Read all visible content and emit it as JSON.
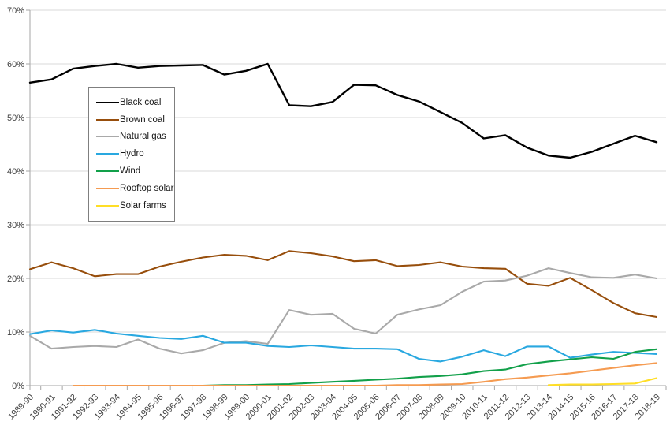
{
  "chart_data": {
    "type": "line",
    "title": "",
    "xlabel": "",
    "ylabel": "",
    "grid": true,
    "legend_position": "upper-left-inside",
    "background_color": "#ffffff",
    "gridline_color": "#d9d9d9",
    "axis_color": "#a6a6a6",
    "x_categories": [
      "1989-90",
      "1990-91",
      "1991-92",
      "1992-93",
      "1993-94",
      "1994-95",
      "1995-96",
      "1996-97",
      "1997-98",
      "1998-99",
      "1999-00",
      "2000-01",
      "2001-02",
      "2002-03",
      "2003-04",
      "2004-05",
      "2005-06",
      "2006-07",
      "2007-08",
      "2008-09",
      "2009-10",
      "2010-11",
      "2011-12",
      "2012-13",
      "2013-14",
      "2014-15",
      "2015-16",
      "2016-17",
      "2017-18",
      "2018-19"
    ],
    "y_axis": {
      "min": 0,
      "max": 70,
      "step": 10,
      "unit": "%",
      "tick_labels": [
        "0%",
        "10%",
        "20%",
        "30%",
        "40%",
        "50%",
        "60%",
        "70%"
      ]
    },
    "series": [
      {
        "name": "Black coal",
        "color": "#000000",
        "values": [
          56.5,
          57.1,
          59.1,
          59.6,
          60.0,
          59.3,
          59.6,
          59.7,
          59.8,
          58.0,
          58.7,
          60.0,
          52.3,
          52.1,
          52.9,
          56.1,
          56.0,
          54.2,
          53.0,
          51.0,
          49.0,
          46.1,
          46.7,
          44.4,
          42.9,
          42.5,
          43.6,
          45.1,
          46.6,
          45.4
        ]
      },
      {
        "name": "Brown coal",
        "color": "#974e0c",
        "values": [
          21.7,
          23.0,
          21.9,
          20.4,
          20.8,
          20.8,
          22.2,
          23.1,
          23.9,
          24.4,
          24.2,
          23.4,
          25.1,
          24.7,
          24.1,
          23.2,
          23.4,
          22.3,
          22.5,
          23.0,
          22.2,
          21.9,
          21.8,
          19.0,
          18.6,
          20.1,
          17.8,
          15.4,
          13.5,
          12.8
        ]
      },
      {
        "name": "Natural gas",
        "color": "#a9a9a9",
        "values": [
          9.3,
          6.9,
          7.2,
          7.4,
          7.2,
          8.6,
          6.9,
          6.0,
          6.6,
          8.0,
          8.3,
          7.8,
          14.1,
          13.2,
          13.4,
          10.6,
          9.7,
          13.2,
          14.2,
          15.0,
          17.5,
          19.4,
          19.6,
          20.5,
          21.9,
          21.0,
          20.2,
          20.1,
          20.7,
          20.0
        ]
      },
      {
        "name": "Hydro",
        "color": "#29a8e0",
        "values": [
          9.6,
          10.3,
          9.9,
          10.4,
          9.7,
          9.3,
          8.9,
          8.7,
          9.3,
          8.0,
          8.0,
          7.4,
          7.2,
          7.5,
          7.2,
          6.9,
          6.9,
          6.8,
          5.0,
          4.5,
          5.4,
          6.6,
          5.5,
          7.3,
          7.3,
          5.2,
          5.8,
          6.3,
          6.1,
          5.9
        ]
      },
      {
        "name": "Wind",
        "color": "#12a04a",
        "values": [
          null,
          null,
          null,
          null,
          null,
          null,
          null,
          null,
          0.0,
          0.1,
          0.1,
          0.2,
          0.3,
          0.5,
          0.7,
          0.9,
          1.1,
          1.3,
          1.6,
          1.8,
          2.1,
          2.7,
          3.0,
          4.0,
          4.5,
          4.9,
          5.3,
          5.0,
          6.3,
          6.8
        ]
      },
      {
        "name": "Rooftop solar",
        "color": "#f59b51",
        "values": [
          null,
          null,
          0.0,
          0.0,
          0.0,
          0.0,
          0.0,
          0.0,
          0.0,
          0.0,
          0.0,
          0.0,
          0.0,
          0.0,
          0.0,
          0.0,
          0.0,
          0.1,
          0.1,
          0.2,
          0.3,
          0.7,
          1.2,
          1.5,
          1.9,
          2.3,
          2.8,
          3.3,
          3.8,
          4.2
        ]
      },
      {
        "name": "Solar farms",
        "color": "#ffde26",
        "values": [
          null,
          null,
          null,
          null,
          null,
          null,
          null,
          null,
          null,
          null,
          null,
          null,
          null,
          null,
          null,
          null,
          null,
          null,
          null,
          null,
          null,
          null,
          null,
          null,
          0.1,
          0.2,
          0.2,
          0.3,
          0.4,
          1.4
        ]
      }
    ]
  }
}
